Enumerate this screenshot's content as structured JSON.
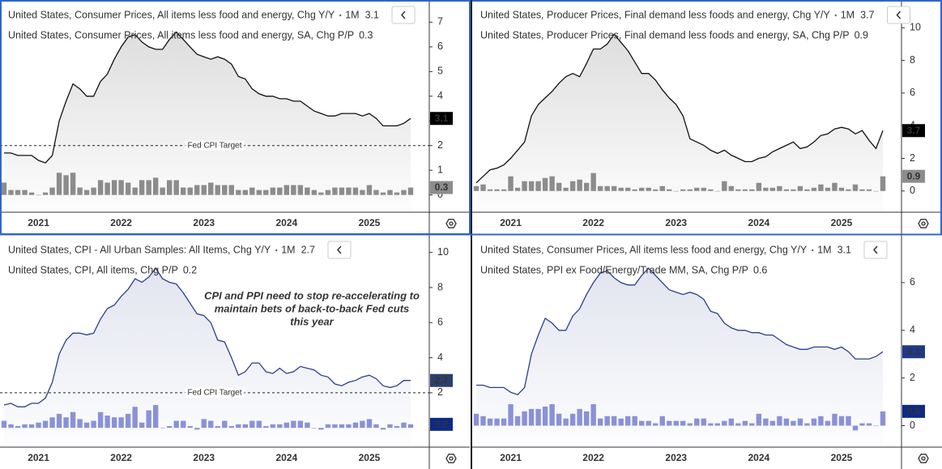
{
  "chart_data": [
    {
      "type": "line",
      "frequency": "1M",
      "ylim": [
        -0.7,
        7.9
      ],
      "yticks": [
        0,
        1,
        2,
        3,
        4,
        5,
        6,
        7
      ],
      "target": {
        "value": 2,
        "label": "Fed CPI Target"
      },
      "categories": [
        null,
        null,
        null,
        null,
        null,
        "2021",
        null,
        null,
        null,
        null,
        null,
        null,
        null,
        null,
        null,
        null,
        null,
        "2022",
        null,
        null,
        null,
        null,
        null,
        null,
        null,
        null,
        null,
        null,
        null,
        "2023",
        null,
        null,
        null,
        null,
        null,
        null,
        null,
        null,
        null,
        null,
        null,
        "2024",
        null,
        null,
        null,
        null,
        null,
        null,
        null,
        null,
        null,
        null,
        null,
        "2025",
        null,
        null,
        null,
        null,
        null,
        null
      ],
      "series": [
        {
          "name": "United States, Consumer Prices, All items less food and energy, Chg Y/Y",
          "type": "line",
          "color": "#111111",
          "badge_color": "#000000",
          "values": [
            1.7,
            1.7,
            1.6,
            1.6,
            1.6,
            1.4,
            1.3,
            1.6,
            3.0,
            3.8,
            4.5,
            4.3,
            4.0,
            4.0,
            4.6,
            4.9,
            5.5,
            6.0,
            6.4,
            6.5,
            6.2,
            6.0,
            5.9,
            5.9,
            6.3,
            6.6,
            6.3,
            6.0,
            5.7,
            5.6,
            5.5,
            5.6,
            5.5,
            5.3,
            4.8,
            4.7,
            4.3,
            4.1,
            4.0,
            4.0,
            3.9,
            3.9,
            3.8,
            3.8,
            3.6,
            3.4,
            3.3,
            3.2,
            3.2,
            3.3,
            3.3,
            3.3,
            3.2,
            3.3,
            3.1,
            2.8,
            2.8,
            2.8,
            2.9,
            3.1
          ]
        },
        {
          "name": "United States, Consumer Prices, All items less food and energy, SA, Chg P/P",
          "type": "bar",
          "color": "#8c8c8c",
          "badge_color": "#8c8c8c",
          "values": [
            0.5,
            0.2,
            0.2,
            0.2,
            0.1,
            0.0,
            0.1,
            0.3,
            0.9,
            0.8,
            0.9,
            0.3,
            0.2,
            0.3,
            0.6,
            0.5,
            0.6,
            0.6,
            0.5,
            0.3,
            0.6,
            0.6,
            0.7,
            0.3,
            0.6,
            0.6,
            0.3,
            0.3,
            0.4,
            0.4,
            0.5,
            0.4,
            0.4,
            0.4,
            0.2,
            0.2,
            0.3,
            0.2,
            0.2,
            0.3,
            0.3,
            0.4,
            0.4,
            0.4,
            0.3,
            0.2,
            0.1,
            0.2,
            0.3,
            0.3,
            0.3,
            0.3,
            0.2,
            0.4,
            0.2,
            0.1,
            0.2,
            0.1,
            0.2,
            0.3
          ]
        }
      ]
    },
    {
      "type": "line",
      "frequency": "1M",
      "ylim": [
        -1.3,
        11.7
      ],
      "yticks": [
        0,
        2,
        4,
        6,
        8,
        10
      ],
      "categories": [
        null,
        null,
        null,
        null,
        null,
        "2021",
        null,
        null,
        null,
        null,
        null,
        null,
        null,
        null,
        null,
        null,
        null,
        "2022",
        null,
        null,
        null,
        null,
        null,
        null,
        null,
        null,
        null,
        null,
        null,
        "2023",
        null,
        null,
        null,
        null,
        null,
        null,
        null,
        null,
        null,
        null,
        null,
        "2024",
        null,
        null,
        null,
        null,
        null,
        null,
        null,
        null,
        null,
        null,
        null,
        "2025",
        null,
        null,
        null,
        null,
        null,
        null
      ],
      "series": [
        {
          "name": "United States, Producer Prices, Final demand less foods and energy, Chg Y/Y",
          "type": "line",
          "color": "#111111",
          "badge_color": "#000000",
          "values": [
            0.5,
            0.9,
            1.3,
            1.4,
            1.6,
            2.0,
            2.5,
            3.0,
            4.6,
            5.3,
            5.7,
            6.1,
            6.6,
            7.0,
            7.2,
            7.0,
            7.8,
            8.7,
            8.7,
            9.0,
            9.6,
            9.1,
            8.6,
            7.9,
            7.2,
            7.2,
            6.8,
            6.2,
            5.7,
            5.3,
            4.6,
            3.2,
            3.0,
            2.8,
            2.5,
            2.3,
            2.5,
            2.2,
            2.0,
            1.8,
            1.8,
            2.0,
            2.1,
            2.4,
            2.6,
            2.8,
            3.0,
            2.6,
            2.7,
            3.0,
            3.4,
            3.5,
            3.8,
            3.9,
            3.8,
            3.5,
            3.7,
            3.1,
            2.6,
            3.7
          ]
        },
        {
          "name": "United States, Producer Prices, Final demand less foods and energy, SA, Chg P/P",
          "type": "bar",
          "color": "#8c8c8c",
          "badge_color": "#8c8c8c",
          "values": [
            0.3,
            0.4,
            0.1,
            0.1,
            0.1,
            0.9,
            0.2,
            0.6,
            0.6,
            0.6,
            0.8,
            0.9,
            0.5,
            0.2,
            0.6,
            0.7,
            0.5,
            1.1,
            0.3,
            0.3,
            0.3,
            0.2,
            0.2,
            0.1,
            0.2,
            0.2,
            0.1,
            0.3,
            0.1,
            0.0,
            0.1,
            0.1,
            0.2,
            0.2,
            0.1,
            0.0,
            0.6,
            0.3,
            0.1,
            0.1,
            0.1,
            0.5,
            0.2,
            0.2,
            0.3,
            0.1,
            0.1,
            0.3,
            0.1,
            0.2,
            0.4,
            0.2,
            0.5,
            0.2,
            0.1,
            0.4,
            0.1,
            0.1,
            0.0,
            0.9
          ]
        }
      ]
    },
    {
      "type": "line",
      "frequency": "1M",
      "ylim": [
        -1.1,
        11
      ],
      "yticks": [
        2,
        4,
        6,
        8,
        10
      ],
      "target": {
        "value": 2,
        "label": "Fed CPI Target"
      },
      "annotation": [
        "CPI and PPI need to stop re-accelerating to",
        "maintain bets of back-to-back Fed cuts",
        "this year"
      ],
      "categories": [
        null,
        null,
        null,
        null,
        null,
        "2021",
        null,
        null,
        null,
        null,
        null,
        null,
        null,
        null,
        null,
        null,
        null,
        "2022",
        null,
        null,
        null,
        null,
        null,
        null,
        null,
        null,
        null,
        null,
        null,
        "2023",
        null,
        null,
        null,
        null,
        null,
        null,
        null,
        null,
        null,
        null,
        null,
        "2024",
        null,
        null,
        null,
        null,
        null,
        null,
        null,
        null,
        null,
        null,
        null,
        "2025",
        null,
        null,
        null,
        null,
        null,
        null
      ],
      "series": [
        {
          "name": "United States, CPI - All Urban Samples: All Items, Chg Y/Y",
          "type": "line",
          "color": "#2d3f8e",
          "badge_color": "#2c3e6b",
          "values": [
            1.3,
            1.4,
            1.2,
            1.2,
            1.4,
            1.4,
            1.7,
            2.6,
            4.2,
            5.0,
            5.4,
            5.4,
            5.3,
            5.4,
            6.2,
            6.8,
            7.0,
            7.5,
            7.9,
            8.5,
            8.3,
            8.6,
            9.1,
            8.5,
            8.3,
            8.2,
            7.7,
            7.1,
            6.5,
            6.4,
            6.0,
            5.0,
            4.9,
            4.0,
            3.0,
            3.2,
            3.7,
            3.7,
            3.2,
            3.1,
            3.4,
            3.1,
            3.2,
            3.5,
            3.4,
            3.3,
            3.0,
            2.9,
            2.5,
            2.4,
            2.6,
            2.7,
            2.9,
            3.0,
            2.8,
            2.4,
            2.3,
            2.4,
            2.7,
            2.7
          ]
        },
        {
          "name": "United States, CPI, All items, Chg P/P",
          "type": "bar",
          "color": "#8a92d6",
          "badge_color": "#0d2a8a",
          "values": [
            0.4,
            0.2,
            0.1,
            0.2,
            0.2,
            0.3,
            0.4,
            0.6,
            0.8,
            0.6,
            0.9,
            0.5,
            0.3,
            0.4,
            0.9,
            0.7,
            0.6,
            0.6,
            0.8,
            1.2,
            0.3,
            1.0,
            1.3,
            0.0,
            0.1,
            0.4,
            0.4,
            0.1,
            -0.1,
            0.5,
            0.4,
            0.1,
            0.4,
            0.1,
            0.2,
            0.2,
            0.4,
            0.4,
            0.1,
            0.2,
            0.2,
            0.3,
            0.4,
            0.4,
            0.3,
            0.0,
            -0.1,
            0.2,
            0.2,
            0.2,
            0.2,
            0.3,
            0.4,
            0.5,
            0.2,
            -0.1,
            0.2,
            0.1,
            0.3,
            0.2
          ]
        }
      ]
    },
    {
      "type": "line",
      "frequency": "1M",
      "ylim": [
        -0.9,
        8
      ],
      "yticks": [
        0,
        2,
        4,
        6
      ],
      "categories": [
        null,
        null,
        null,
        null,
        null,
        "2021",
        null,
        null,
        null,
        null,
        null,
        null,
        null,
        null,
        null,
        null,
        null,
        "2022",
        null,
        null,
        null,
        null,
        null,
        null,
        null,
        null,
        null,
        null,
        null,
        "2023",
        null,
        null,
        null,
        null,
        null,
        null,
        null,
        null,
        null,
        null,
        null,
        "2024",
        null,
        null,
        null,
        null,
        null,
        null,
        null,
        null,
        null,
        null,
        null,
        "2025",
        null,
        null,
        null,
        null,
        null,
        null
      ],
      "series": [
        {
          "name": "United States, Consumer Prices, All items less food and energy, Chg Y/Y",
          "type": "line",
          "color": "#2d3f8e",
          "badge_color": "#1f3a8a",
          "values": [
            1.7,
            1.7,
            1.6,
            1.6,
            1.6,
            1.4,
            1.3,
            1.6,
            3.0,
            3.8,
            4.5,
            4.3,
            4.0,
            4.0,
            4.6,
            4.9,
            5.5,
            6.0,
            6.4,
            6.5,
            6.2,
            6.0,
            5.9,
            5.9,
            6.3,
            6.6,
            6.3,
            6.0,
            5.7,
            5.6,
            5.5,
            5.6,
            5.5,
            5.3,
            4.8,
            4.7,
            4.3,
            4.1,
            4.0,
            4.0,
            3.9,
            3.9,
            3.8,
            3.8,
            3.6,
            3.4,
            3.3,
            3.2,
            3.2,
            3.3,
            3.3,
            3.3,
            3.2,
            3.3,
            3.1,
            2.8,
            2.8,
            2.8,
            2.9,
            3.1
          ]
        },
        {
          "name": "United States, PPI ex Food/Energy/Trade MM, SA, Chg P/P",
          "type": "bar",
          "color": "#8a92d6",
          "badge_color": "#0d2a8a",
          "values": [
            0.5,
            0.4,
            0.3,
            0.3,
            0.3,
            0.9,
            0.4,
            0.6,
            0.7,
            0.7,
            0.8,
            0.9,
            0.5,
            0.3,
            0.5,
            0.7,
            0.6,
            0.9,
            0.3,
            0.4,
            0.4,
            0.3,
            0.4,
            0.4,
            0.2,
            0.2,
            0.1,
            0.4,
            0.2,
            0.2,
            0.2,
            0.1,
            0.3,
            0.3,
            0.1,
            0.1,
            0.2,
            0.3,
            0.1,
            0.2,
            0.1,
            0.5,
            0.3,
            0.2,
            0.4,
            0.3,
            0.2,
            0.3,
            0.1,
            0.3,
            0.4,
            0.2,
            0.5,
            0.4,
            0.4,
            -0.2,
            0.1,
            0.1,
            0.0,
            0.6
          ]
        }
      ]
    }
  ]
}
